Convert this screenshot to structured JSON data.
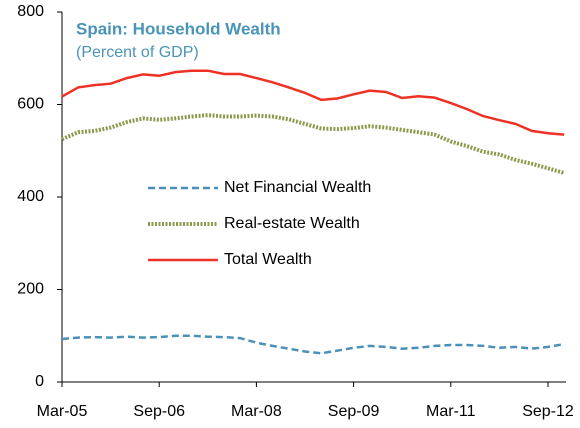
{
  "chart_data": {
    "type": "line",
    "title": "Spain: Household Wealth",
    "subtitle": "(Percent of GDP)",
    "categories": [
      "Mar-05",
      null,
      null,
      null,
      null,
      null,
      "Sep-06",
      null,
      null,
      null,
      null,
      null,
      "Mar-08",
      null,
      null,
      null,
      null,
      null,
      "Sep-09",
      null,
      null,
      null,
      null,
      null,
      "Mar-11",
      null,
      null,
      null,
      null,
      null,
      "Sep-12",
      null
    ],
    "series": [
      {
        "name": "Net Financial Wealth",
        "color": "#4a90b8",
        "style": "dashed",
        "values": [
          93,
          96,
          97,
          96,
          98,
          96,
          97,
          100,
          100,
          98,
          97,
          95,
          85,
          78,
          72,
          66,
          62,
          68,
          74,
          78,
          76,
          72,
          74,
          78,
          80,
          80,
          78,
          74,
          76,
          72,
          76,
          82
        ]
      },
      {
        "name": "Real-estate Wealth",
        "color": "#8a9a4a",
        "style": "dotted",
        "values": [
          525,
          540,
          543,
          550,
          562,
          570,
          567,
          570,
          574,
          577,
          574,
          574,
          576,
          574,
          568,
          558,
          548,
          547,
          549,
          553,
          550,
          545,
          540,
          535,
          520,
          510,
          498,
          492,
          480,
          472,
          462,
          452
        ]
      },
      {
        "name": "Total Wealth",
        "color": "#ee3124",
        "style": "solid",
        "values": [
          617,
          637,
          642,
          645,
          657,
          665,
          662,
          670,
          673,
          673,
          666,
          666,
          657,
          648,
          637,
          625,
          610,
          613,
          622,
          630,
          627,
          614,
          618,
          615,
          603,
          590,
          575,
          566,
          558,
          543,
          538,
          535
        ]
      }
    ],
    "ylim": [
      0,
      800
    ],
    "yticks": [
      0,
      200,
      400,
      600,
      800
    ]
  }
}
